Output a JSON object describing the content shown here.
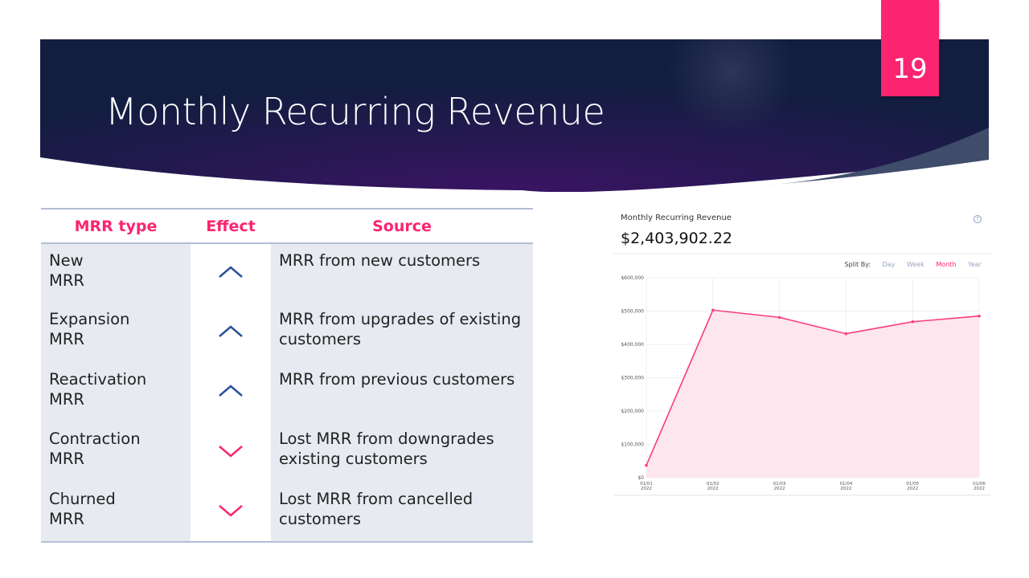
{
  "slide": {
    "title": "Monthly Recurring Revenue",
    "page_number": "19"
  },
  "table": {
    "headers": [
      "MRR type",
      "Effect",
      "Source"
    ],
    "rows": [
      {
        "type_line1": "New",
        "type_line2": "MRR",
        "effect": "up",
        "source": "MRR from new customers"
      },
      {
        "type_line1": "Expansion",
        "type_line2": "MRR",
        "effect": "up",
        "source": "MRR from upgrades of existing customers"
      },
      {
        "type_line1": "Reactivation",
        "type_line2": "MRR",
        "effect": "up",
        "source": "MRR from previous customers"
      },
      {
        "type_line1": "Contraction",
        "type_line2": "MRR",
        "effect": "down",
        "source": "Lost MRR from downgrades existing customers"
      },
      {
        "type_line1": "Churned",
        "type_line2": "MRR",
        "effect": "down",
        "source": "Lost MRR from cancelled customers"
      }
    ]
  },
  "colors": {
    "accent": "#fb2470",
    "up": "#2b4f9e",
    "down": "#fb2470",
    "banner": "#2a1654"
  },
  "chart_card": {
    "title": "Monthly Recurring Revenue",
    "total": "$2,403,902.22",
    "help_icon": "question-circle-icon",
    "split_label": "Split By:",
    "split_options": [
      "Day",
      "Week",
      "Month",
      "Year"
    ],
    "split_selected": "Month"
  },
  "chart_data": {
    "type": "area",
    "x": [
      "01/01 2022",
      "01/02 2022",
      "01/03 2022",
      "01/04 2022",
      "01/05 2022",
      "01/06 2022"
    ],
    "values": [
      37000,
      503000,
      481000,
      432000,
      468000,
      485000
    ],
    "ylim": [
      0,
      600000
    ],
    "yticks": [
      "$0",
      "$100,000",
      "$200,000",
      "$300,000",
      "$400,000",
      "$500,000",
      "$600,000"
    ],
    "grid": true,
    "line_color": "#fb3d7c",
    "fill_color": "#fde6ee"
  }
}
